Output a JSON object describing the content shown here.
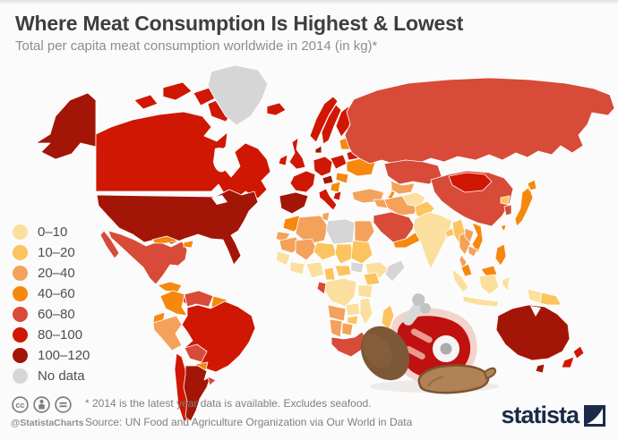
{
  "header": {
    "title": "Where Meat Consumption Is Highest & Lowest",
    "subtitle": "Total per capita meat consumption worldwide in 2014 (in kg)*"
  },
  "footer": {
    "handle": "@StatistaCharts",
    "note": "* 2014 is the latest year data is available. Excludes seafood.",
    "source": "Source: UN Food and Agriculture Organization via Our World in Data",
    "license": {
      "cc": "cc",
      "nd": "="
    },
    "brand": "statista",
    "brand_color": "#1A2B49"
  },
  "chart_data": {
    "type": "heatmap",
    "subtype": "choropleth-world-map",
    "title": "Where Meat Consumption Is Highest & Lowest",
    "subtitle": "Total per capita meat consumption worldwide in 2014 (in kg)*",
    "unit": "kg per capita per year",
    "legend_position": "left",
    "bins": [
      "0–10",
      "10–20",
      "20–40",
      "40–60",
      "60–80",
      "80–100",
      "100–120",
      "No data"
    ],
    "bin_colors": [
      "#FBDF9E",
      "#FBC45F",
      "#F4A15B",
      "#F6880E",
      "#D74B38",
      "#D01703",
      "#A31507",
      "#D6D6D6"
    ],
    "regions": {
      "United States": "100–120",
      "Canada": "80–100",
      "Greenland": "No data",
      "Mexico": "60–80",
      "Guatemala & Honduras": "40–60",
      "Costa Rica & Panama": "60–80",
      "Cuba": "40–60",
      "Hispaniola": "40–60",
      "Colombia": "40–60",
      "Venezuela": "60–80",
      "Guyanas": "40–60",
      "Ecuador": "40–60",
      "Peru": "20–40",
      "Brazil": "80–100",
      "Bolivia": "60–80",
      "Paraguay": "40–60",
      "Chile": "80–100",
      "Argentina": "100–120",
      "Uruguay": "60–80",
      "Iceland": "80–100",
      "United Kingdom": "80–100",
      "Ireland": "80–100",
      "Norway": "80–100",
      "Sweden": "80–100",
      "Finland": "80–100",
      "Denmark": "100–120",
      "Baltics": "40–60",
      "Germany": "80–100",
      "Poland": "80–100",
      "Belarus": "80–100",
      "Ukraine": "40–60",
      "France": "80–100",
      "Spain & Portugal": "100–120",
      "Italy": "80–100",
      "Austria": "100–120",
      "Balkans": "40–60",
      "Romania": "40–60",
      "Greece": "80–100",
      "Turkey": "20–40",
      "Russia": "60–80",
      "Kazakhstan": "60–80",
      "Uzbekistan": "20–40",
      "Turkmenistan": "40–60",
      "Iran": "20–40",
      "Iraq": "20–40",
      "Saudi Arabia": "60–80",
      "Yemen & Oman": "40–60",
      "Afghanistan": "0–10",
      "Pakistan": "10–20",
      "India": "0–10",
      "Bangladesh": "10–20",
      "China": "60–80",
      "Mongolia": "80–100",
      "North Korea": "10–20",
      "South Korea": "60–80",
      "Japan": "40–60",
      "Taiwan": "40–60",
      "Myanmar": "10–20",
      "Thailand": "20–40",
      "Laos": "20–40",
      "Vietnam": "40–60",
      "Cambodia": "20–40",
      "Malaysia": "40–60",
      "Indonesia": "0–10",
      "Philippines": "40–60",
      "Papua New Guinea": "10–20",
      "Morocco": "40–60",
      "Western Sahara": "20–40",
      "Algeria": "20–40",
      "Tunisia": "20–40",
      "Libya": "No data",
      "Egypt": "20–40",
      "Mauritania": "20–40",
      "Mali": "20–40",
      "Niger": "10–20",
      "Chad": "10–20",
      "Sudan": "10–20",
      "Ethiopia": "0–10",
      "Somalia": "No data",
      "Senegal & Guinea": "0–10",
      "Ivory Coast & Ghana": "0–10",
      "Nigeria": "0–10",
      "Cameroon": "10–20",
      "Central African Republic": "10–20",
      "South Sudan": "No data",
      "Kenya": "10–20",
      "Tanzania": "0–10",
      "DR Congo": "0–10",
      "Gabon": "60–80",
      "Angola": "20–40",
      "Zambia": "0–10",
      "Mozambique": "0–10",
      "Zimbabwe": "10–20",
      "Namibia": "20–40",
      "Botswana": "20–40",
      "South Africa": "60–80",
      "Madagascar": "10–20",
      "Australia": "100–120",
      "New Zealand": "80–100"
    }
  }
}
